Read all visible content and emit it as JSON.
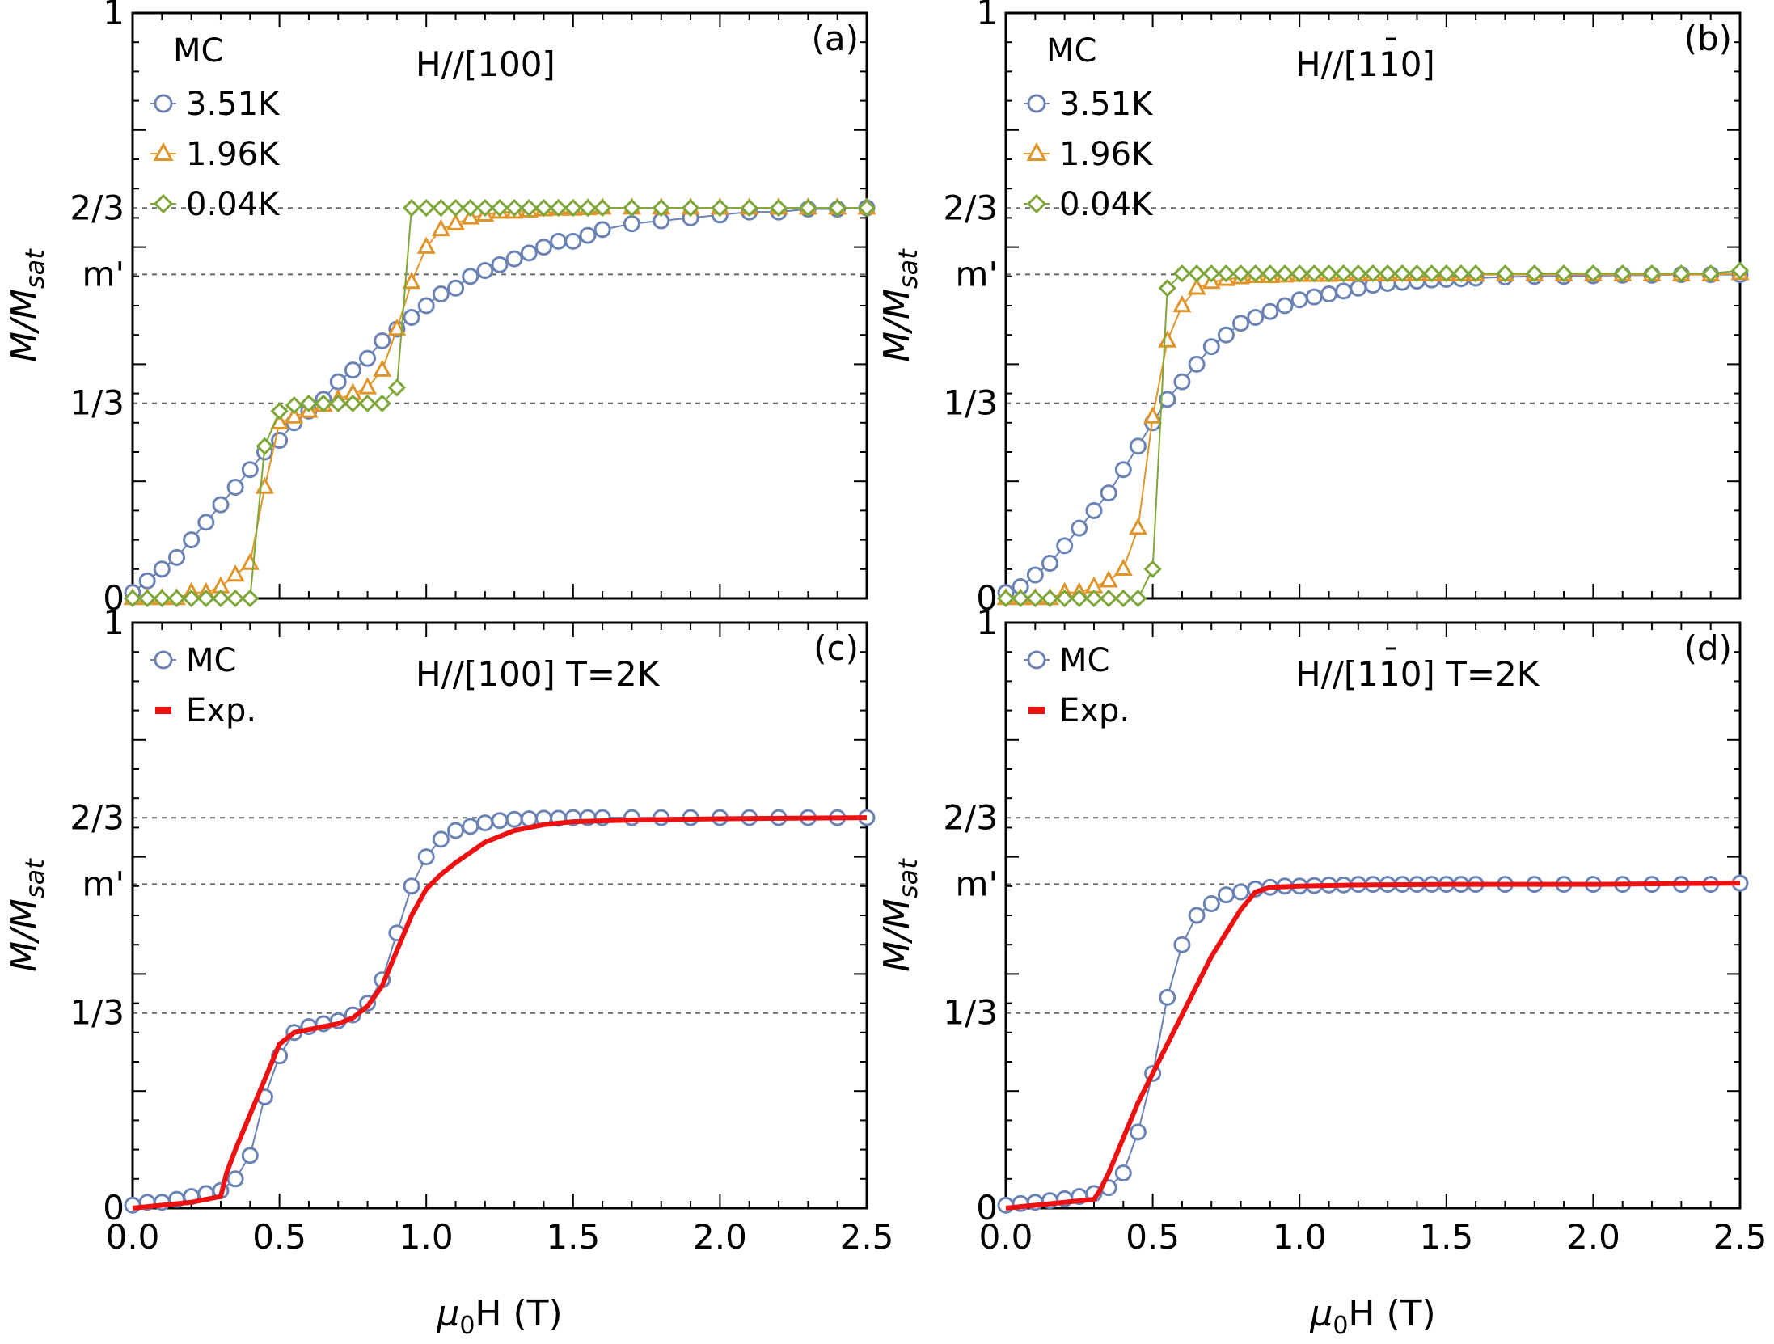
{
  "figure": {
    "colors": {
      "mc_3.51K": "#6b82b4",
      "mc_1.96K": "#e0952b",
      "mc_0.04K": "#7ea73a",
      "mc_2K": "#6b82b4",
      "exp": "#ee1111",
      "ref_line": "#666666"
    }
  },
  "chart_data": [
    {
      "type": "line",
      "panel_tag": "(a)",
      "title": "H//[100]",
      "legend_header": "MC",
      "xlabel": "",
      "ylabel_main": "M/M",
      "ylabel_sub": "sat",
      "xlim": [
        0,
        2.5
      ],
      "ylim": [
        0,
        1
      ],
      "x_ticks": [
        0.0,
        0.5,
        1.0,
        1.5,
        2.0,
        2.5
      ],
      "y_ticks": [
        {
          "value": 0,
          "label": "0"
        },
        {
          "value": 0.3333,
          "label": "1/3"
        },
        {
          "value": 0.5533,
          "label": "m'"
        },
        {
          "value": 0.6667,
          "label": "2/3"
        },
        {
          "value": 1,
          "label": "1"
        }
      ],
      "ref_lines": [
        0.3333,
        0.5533,
        0.6667
      ],
      "series": [
        {
          "name": "3.51K",
          "marker": "circle",
          "color_key": "mc_3.51K",
          "x": [
            0.0,
            0.05,
            0.1,
            0.15,
            0.2,
            0.25,
            0.3,
            0.35,
            0.4,
            0.45,
            0.5,
            0.55,
            0.6,
            0.65,
            0.7,
            0.75,
            0.8,
            0.85,
            0.9,
            0.95,
            1.0,
            1.05,
            1.1,
            1.15,
            1.2,
            1.25,
            1.3,
            1.35,
            1.4,
            1.45,
            1.5,
            1.55,
            1.6,
            1.7,
            1.8,
            1.9,
            2.0,
            2.1,
            2.2,
            2.3,
            2.4,
            2.5
          ],
          "y": [
            0.01,
            0.03,
            0.05,
            0.07,
            0.1,
            0.13,
            0.16,
            0.19,
            0.22,
            0.25,
            0.27,
            0.3,
            0.32,
            0.34,
            0.37,
            0.39,
            0.41,
            0.44,
            0.46,
            0.48,
            0.5,
            0.52,
            0.53,
            0.55,
            0.56,
            0.57,
            0.58,
            0.59,
            0.6,
            0.61,
            0.61,
            0.62,
            0.63,
            0.64,
            0.645,
            0.65,
            0.655,
            0.66,
            0.66,
            0.665,
            0.665,
            0.667
          ]
        },
        {
          "name": "1.96K",
          "marker": "triangle",
          "color_key": "mc_1.96K",
          "x": [
            0.0,
            0.05,
            0.1,
            0.15,
            0.2,
            0.25,
            0.3,
            0.35,
            0.4,
            0.45,
            0.5,
            0.55,
            0.6,
            0.65,
            0.7,
            0.75,
            0.8,
            0.85,
            0.9,
            0.95,
            1.0,
            1.05,
            1.1,
            1.15,
            1.2,
            1.25,
            1.3,
            1.35,
            1.4,
            1.45,
            1.5,
            1.55,
            1.6,
            1.7,
            1.8,
            1.9,
            2.0,
            2.1,
            2.2,
            2.3,
            2.4,
            2.5
          ],
          "y": [
            0.0,
            0.0,
            0.0,
            0.0,
            0.01,
            0.01,
            0.02,
            0.04,
            0.06,
            0.19,
            0.3,
            0.31,
            0.32,
            0.33,
            0.34,
            0.35,
            0.36,
            0.39,
            0.46,
            0.54,
            0.6,
            0.63,
            0.64,
            0.65,
            0.655,
            0.66,
            0.66,
            0.662,
            0.664,
            0.665,
            0.665,
            0.666,
            0.667,
            0.667,
            0.667,
            0.667,
            0.667,
            0.667,
            0.667,
            0.667,
            0.667,
            0.667
          ]
        },
        {
          "name": "0.04K",
          "marker": "diamond",
          "color_key": "mc_0.04K",
          "x": [
            0.0,
            0.05,
            0.1,
            0.15,
            0.2,
            0.25,
            0.3,
            0.35,
            0.4,
            0.45,
            0.5,
            0.55,
            0.6,
            0.65,
            0.7,
            0.75,
            0.8,
            0.85,
            0.9,
            0.95,
            1.0,
            1.05,
            1.1,
            1.15,
            1.2,
            1.25,
            1.3,
            1.35,
            1.4,
            1.45,
            1.5,
            1.55,
            1.6,
            1.7,
            1.8,
            1.9,
            2.0,
            2.1,
            2.2,
            2.3,
            2.4,
            2.5
          ],
          "y": [
            0.0,
            0.0,
            0.0,
            0.0,
            0.0,
            0.0,
            0.0,
            0.0,
            0.0,
            0.26,
            0.32,
            0.33,
            0.333,
            0.333,
            0.333,
            0.333,
            0.333,
            0.333,
            0.36,
            0.667,
            0.667,
            0.667,
            0.667,
            0.667,
            0.667,
            0.667,
            0.667,
            0.667,
            0.667,
            0.667,
            0.667,
            0.667,
            0.667,
            0.667,
            0.667,
            0.667,
            0.667,
            0.667,
            0.667,
            0.667,
            0.667,
            0.667
          ]
        }
      ]
    },
    {
      "type": "line",
      "panel_tag": "(b)",
      "title": "H//[110]",
      "title_bar_over": "1",
      "legend_header": "MC",
      "xlabel": "",
      "ylabel_main": "M/M",
      "ylabel_sub": "sat",
      "xlim": [
        0,
        2.5
      ],
      "ylim": [
        0,
        1
      ],
      "x_ticks": [
        0.0,
        0.5,
        1.0,
        1.5,
        2.0,
        2.5
      ],
      "y_ticks": [
        {
          "value": 0,
          "label": "0"
        },
        {
          "value": 0.3333,
          "label": "1/3"
        },
        {
          "value": 0.5533,
          "label": "m'"
        },
        {
          "value": 0.6667,
          "label": "2/3"
        },
        {
          "value": 1,
          "label": "1"
        }
      ],
      "ref_lines": [
        0.3333,
        0.5533,
        0.6667
      ],
      "series": [
        {
          "name": "3.51K",
          "marker": "circle",
          "color_key": "mc_3.51K",
          "x": [
            0.0,
            0.05,
            0.1,
            0.15,
            0.2,
            0.25,
            0.3,
            0.35,
            0.4,
            0.45,
            0.5,
            0.55,
            0.6,
            0.65,
            0.7,
            0.75,
            0.8,
            0.85,
            0.9,
            0.95,
            1.0,
            1.05,
            1.1,
            1.15,
            1.2,
            1.25,
            1.3,
            1.35,
            1.4,
            1.45,
            1.5,
            1.55,
            1.6,
            1.7,
            1.8,
            1.9,
            2.0,
            2.1,
            2.2,
            2.3,
            2.4,
            2.5
          ],
          "y": [
            0.01,
            0.02,
            0.04,
            0.06,
            0.09,
            0.12,
            0.15,
            0.18,
            0.22,
            0.26,
            0.3,
            0.34,
            0.37,
            0.4,
            0.43,
            0.45,
            0.47,
            0.48,
            0.49,
            0.5,
            0.51,
            0.515,
            0.52,
            0.525,
            0.53,
            0.535,
            0.538,
            0.54,
            0.542,
            0.544,
            0.545,
            0.546,
            0.547,
            0.549,
            0.55,
            0.55,
            0.551,
            0.552,
            0.552,
            0.553,
            0.553,
            0.553
          ]
        },
        {
          "name": "1.96K",
          "marker": "triangle",
          "color_key": "mc_1.96K",
          "x": [
            0.0,
            0.05,
            0.1,
            0.15,
            0.2,
            0.25,
            0.3,
            0.35,
            0.4,
            0.45,
            0.5,
            0.55,
            0.6,
            0.65,
            0.7,
            0.75,
            0.8,
            0.85,
            0.9,
            0.95,
            1.0,
            1.05,
            1.1,
            1.15,
            1.2,
            1.25,
            1.3,
            1.35,
            1.4,
            1.45,
            1.5,
            1.55,
            1.6,
            1.7,
            1.8,
            1.9,
            2.0,
            2.1,
            2.2,
            2.3,
            2.4,
            2.5
          ],
          "y": [
            0.0,
            0.0,
            0.0,
            0.0,
            0.01,
            0.01,
            0.02,
            0.03,
            0.05,
            0.12,
            0.31,
            0.44,
            0.5,
            0.53,
            0.54,
            0.545,
            0.548,
            0.55,
            0.55,
            0.551,
            0.552,
            0.552,
            0.552,
            0.553,
            0.553,
            0.553,
            0.553,
            0.553,
            0.553,
            0.553,
            0.553,
            0.553,
            0.553,
            0.553,
            0.553,
            0.553,
            0.553,
            0.553,
            0.553,
            0.553,
            0.553,
            0.555
          ]
        },
        {
          "name": "0.04K",
          "marker": "diamond",
          "color_key": "mc_0.04K",
          "x": [
            0.0,
            0.05,
            0.1,
            0.15,
            0.2,
            0.25,
            0.3,
            0.35,
            0.4,
            0.45,
            0.5,
            0.55,
            0.6,
            0.65,
            0.7,
            0.75,
            0.8,
            0.85,
            0.9,
            0.95,
            1.0,
            1.05,
            1.1,
            1.15,
            1.2,
            1.25,
            1.3,
            1.35,
            1.4,
            1.45,
            1.5,
            1.55,
            1.6,
            1.7,
            1.8,
            1.9,
            2.0,
            2.1,
            2.2,
            2.3,
            2.4,
            2.5
          ],
          "y": [
            0.0,
            0.0,
            0.0,
            0.0,
            0.0,
            0.0,
            0.0,
            0.0,
            0.0,
            0.0,
            0.05,
            0.53,
            0.555,
            0.555,
            0.555,
            0.555,
            0.555,
            0.555,
            0.555,
            0.555,
            0.555,
            0.555,
            0.555,
            0.555,
            0.555,
            0.555,
            0.555,
            0.555,
            0.555,
            0.555,
            0.555,
            0.555,
            0.555,
            0.555,
            0.555,
            0.555,
            0.555,
            0.555,
            0.555,
            0.555,
            0.555,
            0.56
          ]
        }
      ]
    },
    {
      "type": "line",
      "panel_tag": "(c)",
      "title": "H//[100]   T=2K",
      "xlabel_main": "μ",
      "xlabel_sub": "0",
      "xlabel_rest": "H (T)",
      "ylabel_main": "M/M",
      "ylabel_sub": "sat",
      "xlim": [
        0,
        2.5
      ],
      "ylim": [
        0,
        1
      ],
      "x_ticks": [
        0.0,
        0.5,
        1.0,
        1.5,
        2.0,
        2.5
      ],
      "x_tick_labels": [
        "0.0",
        "0.5",
        "1.0",
        "1.5",
        "2.0",
        "2.5"
      ],
      "y_ticks": [
        {
          "value": 0,
          "label": "0"
        },
        {
          "value": 0.3333,
          "label": "1/3"
        },
        {
          "value": 0.5533,
          "label": "m'"
        },
        {
          "value": 0.6667,
          "label": "2/3"
        },
        {
          "value": 1,
          "label": "1"
        }
      ],
      "ref_lines": [
        0.3333,
        0.5533,
        0.6667
      ],
      "series": [
        {
          "name": "MC",
          "marker": "circle",
          "color_key": "mc_2K",
          "x": [
            0.0,
            0.05,
            0.1,
            0.15,
            0.2,
            0.25,
            0.3,
            0.35,
            0.4,
            0.45,
            0.5,
            0.55,
            0.6,
            0.65,
            0.7,
            0.75,
            0.8,
            0.85,
            0.9,
            0.95,
            1.0,
            1.05,
            1.1,
            1.15,
            1.2,
            1.25,
            1.3,
            1.35,
            1.4,
            1.45,
            1.5,
            1.55,
            1.6,
            1.7,
            1.8,
            1.9,
            2.0,
            2.1,
            2.2,
            2.3,
            2.4,
            2.5
          ],
          "y": [
            0.005,
            0.01,
            0.01,
            0.015,
            0.02,
            0.025,
            0.03,
            0.05,
            0.09,
            0.19,
            0.26,
            0.3,
            0.31,
            0.315,
            0.32,
            0.33,
            0.35,
            0.39,
            0.47,
            0.55,
            0.6,
            0.63,
            0.645,
            0.652,
            0.658,
            0.662,
            0.664,
            0.665,
            0.666,
            0.666,
            0.667,
            0.667,
            0.667,
            0.667,
            0.667,
            0.667,
            0.667,
            0.667,
            0.667,
            0.667,
            0.667,
            0.667
          ]
        },
        {
          "name": "Exp.",
          "marker": "line",
          "color_key": "exp",
          "x": [
            0.0,
            0.1,
            0.2,
            0.3,
            0.32,
            0.35,
            0.4,
            0.45,
            0.5,
            0.55,
            0.6,
            0.65,
            0.7,
            0.75,
            0.8,
            0.85,
            0.9,
            0.95,
            1.0,
            1.05,
            1.1,
            1.2,
            1.3,
            1.4,
            1.5,
            1.7,
            2.0,
            2.2,
            2.5
          ],
          "y": [
            0.0,
            0.005,
            0.01,
            0.02,
            0.06,
            0.1,
            0.16,
            0.22,
            0.28,
            0.3,
            0.305,
            0.31,
            0.315,
            0.325,
            0.345,
            0.38,
            0.44,
            0.5,
            0.545,
            0.57,
            0.59,
            0.625,
            0.645,
            0.655,
            0.66,
            0.663,
            0.665,
            0.666,
            0.667
          ]
        }
      ]
    },
    {
      "type": "line",
      "panel_tag": "(d)",
      "title": "H//[110]   T=2K",
      "title_bar_over": "1",
      "xlabel_main": "μ",
      "xlabel_sub": "0",
      "xlabel_rest": "H (T)",
      "ylabel_main": "M/M",
      "ylabel_sub": "sat",
      "xlim": [
        0,
        2.5
      ],
      "ylim": [
        0,
        1
      ],
      "x_ticks": [
        0.0,
        0.5,
        1.0,
        1.5,
        2.0,
        2.5
      ],
      "x_tick_labels": [
        "0.0",
        "0.5",
        "1.0",
        "1.5",
        "2.0",
        "2.5"
      ],
      "y_ticks": [
        {
          "value": 0,
          "label": "0"
        },
        {
          "value": 0.3333,
          "label": "1/3"
        },
        {
          "value": 0.5533,
          "label": "m'"
        },
        {
          "value": 0.6667,
          "label": "2/3"
        },
        {
          "value": 1,
          "label": "1"
        }
      ],
      "ref_lines": [
        0.3333,
        0.5533,
        0.6667
      ],
      "series": [
        {
          "name": "MC",
          "marker": "circle",
          "color_key": "mc_2K",
          "x": [
            0.0,
            0.05,
            0.1,
            0.15,
            0.2,
            0.25,
            0.3,
            0.35,
            0.4,
            0.45,
            0.5,
            0.55,
            0.6,
            0.65,
            0.7,
            0.75,
            0.8,
            0.85,
            0.9,
            0.95,
            1.0,
            1.05,
            1.1,
            1.15,
            1.2,
            1.25,
            1.3,
            1.35,
            1.4,
            1.45,
            1.5,
            1.55,
            1.6,
            1.7,
            1.8,
            1.9,
            2.0,
            2.1,
            2.2,
            2.3,
            2.4,
            2.5
          ],
          "y": [
            0.005,
            0.008,
            0.01,
            0.013,
            0.016,
            0.02,
            0.025,
            0.035,
            0.06,
            0.13,
            0.23,
            0.36,
            0.45,
            0.5,
            0.52,
            0.535,
            0.54,
            0.545,
            0.548,
            0.55,
            0.55,
            0.551,
            0.552,
            0.552,
            0.553,
            0.553,
            0.553,
            0.553,
            0.553,
            0.553,
            0.553,
            0.553,
            0.553,
            0.553,
            0.553,
            0.553,
            0.553,
            0.553,
            0.553,
            0.553,
            0.553,
            0.555
          ]
        },
        {
          "name": "Exp.",
          "marker": "line",
          "color_key": "exp",
          "x": [
            0.0,
            0.1,
            0.2,
            0.3,
            0.32,
            0.35,
            0.4,
            0.45,
            0.5,
            0.55,
            0.6,
            0.65,
            0.7,
            0.75,
            0.8,
            0.85,
            0.9,
            1.0,
            1.2,
            1.5,
            2.0,
            2.5
          ],
          "y": [
            0.0,
            0.005,
            0.01,
            0.015,
            0.03,
            0.06,
            0.12,
            0.18,
            0.23,
            0.28,
            0.33,
            0.38,
            0.43,
            0.47,
            0.51,
            0.54,
            0.548,
            0.55,
            0.552,
            0.553,
            0.553,
            0.555
          ]
        }
      ]
    }
  ]
}
